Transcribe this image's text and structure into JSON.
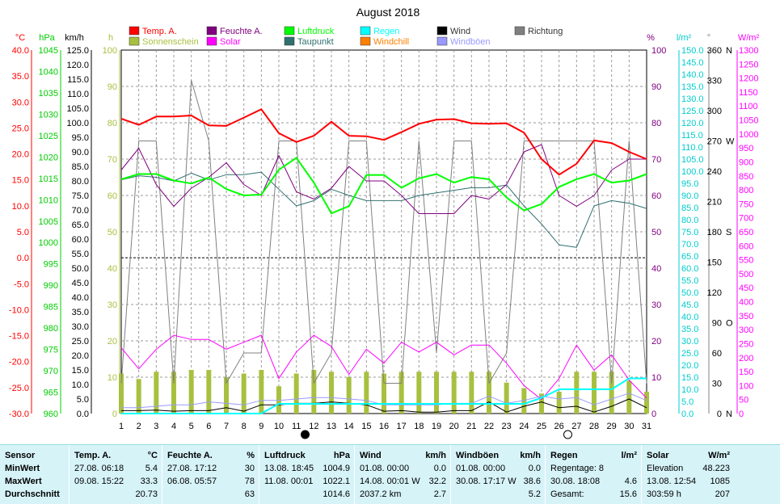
{
  "chart_data": {
    "type": "line",
    "title": "August 2018",
    "x": [
      1,
      2,
      3,
      4,
      5,
      6,
      7,
      8,
      9,
      10,
      11,
      12,
      13,
      14,
      15,
      16,
      17,
      18,
      19,
      20,
      21,
      22,
      23,
      24,
      25,
      26,
      27,
      28,
      29,
      30,
      31
    ],
    "legend": [
      {
        "name": "Temp. A.",
        "color": "#ff0000"
      },
      {
        "name": "Feuchte A.",
        "color": "#800080"
      },
      {
        "name": "Luftdruck",
        "color": "#00ff00"
      },
      {
        "name": "Regen",
        "color": "#00ffff"
      },
      {
        "name": "Wind",
        "color": "#000000"
      },
      {
        "name": "Richtung",
        "color": "#808080"
      },
      {
        "name": "Sonnenschein",
        "color": "#a8c040"
      },
      {
        "name": "Solar",
        "color": "#ff00ff"
      },
      {
        "name": "Taupunkt",
        "color": "#307070"
      },
      {
        "name": "Windchill",
        "color": "#ff8000"
      },
      {
        "name": "Windböen",
        "color": "#9999ff"
      }
    ],
    "axes": {
      "temp": {
        "label": "°C",
        "min": -30,
        "max": 40,
        "step": 5,
        "color": "#ff0000"
      },
      "hpa": {
        "label": "hPa",
        "min": 960,
        "max": 1045,
        "step": 5,
        "color": "#00cc00"
      },
      "kmh": {
        "label": "km/h",
        "min": 0,
        "max": 125,
        "step": 5,
        "color": "#000000"
      },
      "h": {
        "label": "h",
        "min": 0,
        "max": 100,
        "step": 10,
        "color": "#a8c040"
      },
      "pct": {
        "label": "%",
        "min": 0,
        "max": 100,
        "step": 10,
        "color": "#800080"
      },
      "rain": {
        "label": "l/m²",
        "min": 0,
        "max": 150,
        "step": 5,
        "color": "#00cccc"
      },
      "dir": {
        "label": "°",
        "ticks": [
          {
            "v": 0,
            "t": "0"
          },
          {
            "v": 30,
            "t": "30"
          },
          {
            "v": 60,
            "t": "60"
          },
          {
            "v": 90,
            "t": "90"
          },
          {
            "v": 120,
            "t": "120"
          },
          {
            "v": 150,
            "t": "150"
          },
          {
            "v": 180,
            "t": "180"
          },
          {
            "v": 210,
            "t": "210"
          },
          {
            "v": 240,
            "t": "240"
          },
          {
            "v": 270,
            "t": "270"
          },
          {
            "v": 300,
            "t": "300"
          },
          {
            "v": 330,
            "t": "330"
          },
          {
            "v": 360,
            "t": "360"
          }
        ],
        "compass": [
          {
            "v": 0,
            "t": "N"
          },
          {
            "v": 90,
            "t": "O"
          },
          {
            "v": 180,
            "t": "S"
          },
          {
            "v": 270,
            "t": "W"
          },
          {
            "v": 360,
            "t": "N"
          }
        ],
        "color": "#808080"
      },
      "solar": {
        "label": "W/m²",
        "min": 0,
        "max": 1300,
        "step": 50,
        "color": "#ff00ff"
      }
    },
    "series": [
      {
        "name": "Temp. A.",
        "axis": "temp",
        "color": "#ff0000",
        "width": 2,
        "values": [
          26.8,
          25.6,
          27.2,
          27.2,
          27.4,
          25.5,
          25.4,
          27.0,
          28.6,
          24.0,
          22.3,
          23.5,
          26.2,
          23.5,
          23.4,
          22.7,
          24.2,
          25.8,
          26.6,
          26.7,
          25.9,
          25.8,
          25.9,
          24.1,
          19.0,
          16.0,
          18.1,
          22.6,
          22.1,
          20.4,
          19.0
        ]
      },
      {
        "name": "Luftdruck",
        "axis": "hpa",
        "color": "#00ff00",
        "width": 2,
        "values": [
          1014.8,
          1016.0,
          1016.0,
          1014.5,
          1013.8,
          1015.2,
          1012.5,
          1011.0,
          1011.2,
          1017.0,
          1019.8,
          1014.0,
          1006.8,
          1008.5,
          1015.8,
          1015.8,
          1012.8,
          1015.0,
          1016.0,
          1014.0,
          1015.3,
          1014.8,
          1010.5,
          1007.5,
          1009.0,
          1013.0,
          1014.8,
          1016.0,
          1014.0,
          1014.5,
          1016.0
        ]
      },
      {
        "name": "Feuchte A.",
        "axis": "pct",
        "color": "#800080",
        "width": 1,
        "values": [
          67,
          73,
          63,
          57,
          62,
          65,
          69,
          63,
          60,
          71,
          61,
          59,
          62,
          68,
          64,
          64,
          60,
          55,
          55,
          55,
          60,
          59,
          63,
          72,
          74,
          60,
          57,
          60,
          67,
          70,
          70
        ]
      },
      {
        "name": "Taupunkt",
        "axis": "temp",
        "color": "#307070",
        "width": 1,
        "values": [
          15.0,
          15.8,
          15.5,
          14.8,
          16.3,
          15.0,
          16.0,
          16.0,
          16.5,
          13.2,
          10.0,
          11.0,
          13.2,
          12.0,
          11.0,
          11.0,
          11.0,
          12.0,
          12.5,
          13.0,
          13.5,
          13.5,
          14.0,
          10.0,
          6.5,
          2.5,
          2.0,
          10.0,
          11.0,
          10.5,
          9.5
        ]
      },
      {
        "name": "Solar",
        "axis": "solar",
        "color": "#ff00ff",
        "width": 1,
        "values": [
          235,
          160,
          230,
          280,
          265,
          265,
          230,
          255,
          280,
          125,
          220,
          280,
          240,
          140,
          230,
          180,
          255,
          220,
          255,
          210,
          245,
          245,
          180,
          100,
          50,
          125,
          245,
          155,
          210,
          120,
          55
        ]
      },
      {
        "name": "Wind",
        "axis": "kmh",
        "color": "#000000",
        "width": 1,
        "values": [
          1.0,
          1.0,
          1.2,
          0.8,
          1.0,
          1.0,
          2.0,
          0.8,
          3.0,
          3.0,
          3.5,
          3.5,
          4.0,
          3.5,
          3.0,
          0.8,
          1.0,
          0.5,
          0.5,
          1.0,
          1.0,
          4.0,
          0.5,
          2.5,
          4.0,
          2.0,
          2.5,
          0.5,
          2.5,
          5.0,
          2.0
        ]
      },
      {
        "name": "Windböen",
        "axis": "kmh",
        "color": "#9999ff",
        "width": 1,
        "values": [
          2.0,
          2.0,
          2.5,
          3.0,
          3.0,
          4.0,
          3.5,
          3.0,
          4.5,
          4.5,
          5.0,
          5.5,
          5.5,
          5.0,
          4.5,
          3.0,
          3.0,
          3.0,
          3.0,
          3.5,
          3.5,
          6.0,
          3.5,
          4.5,
          6.0,
          5.0,
          5.5,
          3.0,
          5.0,
          7.0,
          4.5
        ]
      },
      {
        "name": "Regen",
        "axis": "rain",
        "color": "#00ffff",
        "width": 2,
        "values": [
          0,
          0,
          0,
          0,
          0,
          0,
          0,
          0,
          0,
          4.0,
          4.0,
          4.0,
          4.0,
          4.0,
          4.0,
          4.0,
          4.0,
          4.0,
          4.0,
          4.0,
          4.0,
          4.0,
          4.0,
          4.0,
          6.5,
          10.0,
          10.0,
          10.0,
          10.0,
          14.5,
          14.5
        ]
      },
      {
        "name": "Richtung",
        "axis": "dir",
        "color": "#808080",
        "width": 1,
        "values": [
          30,
          270,
          270,
          30,
          330,
          270,
          30,
          60,
          60,
          270,
          270,
          30,
          60,
          270,
          270,
          30,
          30,
          270,
          60,
          270,
          270,
          30,
          60,
          270,
          270,
          270,
          270,
          270,
          30,
          270,
          30
        ]
      }
    ],
    "sunshine": {
      "name": "Sonnenschein",
      "axis": "h",
      "color": "#a8c040",
      "values": [
        11,
        9.5,
        11.5,
        11.5,
        12,
        12,
        10,
        11,
        12,
        7.5,
        11,
        12,
        11.5,
        10,
        11.5,
        11,
        11.5,
        11.5,
        11.5,
        11.5,
        11.5,
        11.5,
        8.5,
        7,
        5.5,
        6,
        11.5,
        11.5,
        11.5,
        9,
        6
      ]
    },
    "reference_line": {
      "axis": "temp",
      "value": 0
    },
    "markers": [
      {
        "day": 11.5,
        "type": "new-moon"
      },
      {
        "day": 26.5,
        "type": "full-moon"
      }
    ]
  },
  "stats": {
    "row_labels": [
      "Sensor",
      "MinWert",
      "MaxWert",
      "Durchschnitt"
    ],
    "groups": [
      {
        "title": "Temp. A.",
        "unit": "°C",
        "rows": [
          [
            "27.08.  06:18",
            "5.4"
          ],
          [
            "09.08.  15:22",
            "33.3"
          ],
          [
            "",
            "20.73"
          ]
        ]
      },
      {
        "title": "Feuchte A.",
        "unit": "%",
        "rows": [
          [
            "27.08.  17:12",
            "30"
          ],
          [
            "06.08.  05:57",
            "78"
          ],
          [
            "",
            "63"
          ]
        ]
      },
      {
        "title": "Luftdruck",
        "unit": "hPa",
        "rows": [
          [
            "13.08.  18:45",
            "1004.9"
          ],
          [
            "11.08.  00:01",
            "1022.1"
          ],
          [
            "",
            "1014.6"
          ]
        ]
      },
      {
        "title": "Wind",
        "unit": "km/h",
        "rows": [
          [
            "01.08.  00:00",
            "0.0"
          ],
          [
            "14.08.  00:01  W",
            "32.2"
          ],
          [
            "2037.2 km",
            "2.7"
          ]
        ]
      },
      {
        "title": "Windböen",
        "unit": "km/h",
        "rows": [
          [
            "01.08.  00:00",
            "0.0"
          ],
          [
            "30.08.  17:17  W",
            "38.6"
          ],
          [
            "",
            "5.2"
          ]
        ]
      },
      {
        "title": "Regen",
        "unit": "l/m²",
        "rows": [
          [
            "Regentage: 8",
            ""
          ],
          [
            "30.08.  18:08",
            "4.6"
          ],
          [
            "Gesamt:",
            "15.6"
          ]
        ]
      },
      {
        "title": "Solar",
        "unit": "W/m²",
        "rows": [
          [
            "Elevation",
            "48.223"
          ],
          [
            "13.08.  12:54",
            "1085"
          ],
          [
            "303:59 h",
            "207"
          ]
        ]
      }
    ]
  }
}
